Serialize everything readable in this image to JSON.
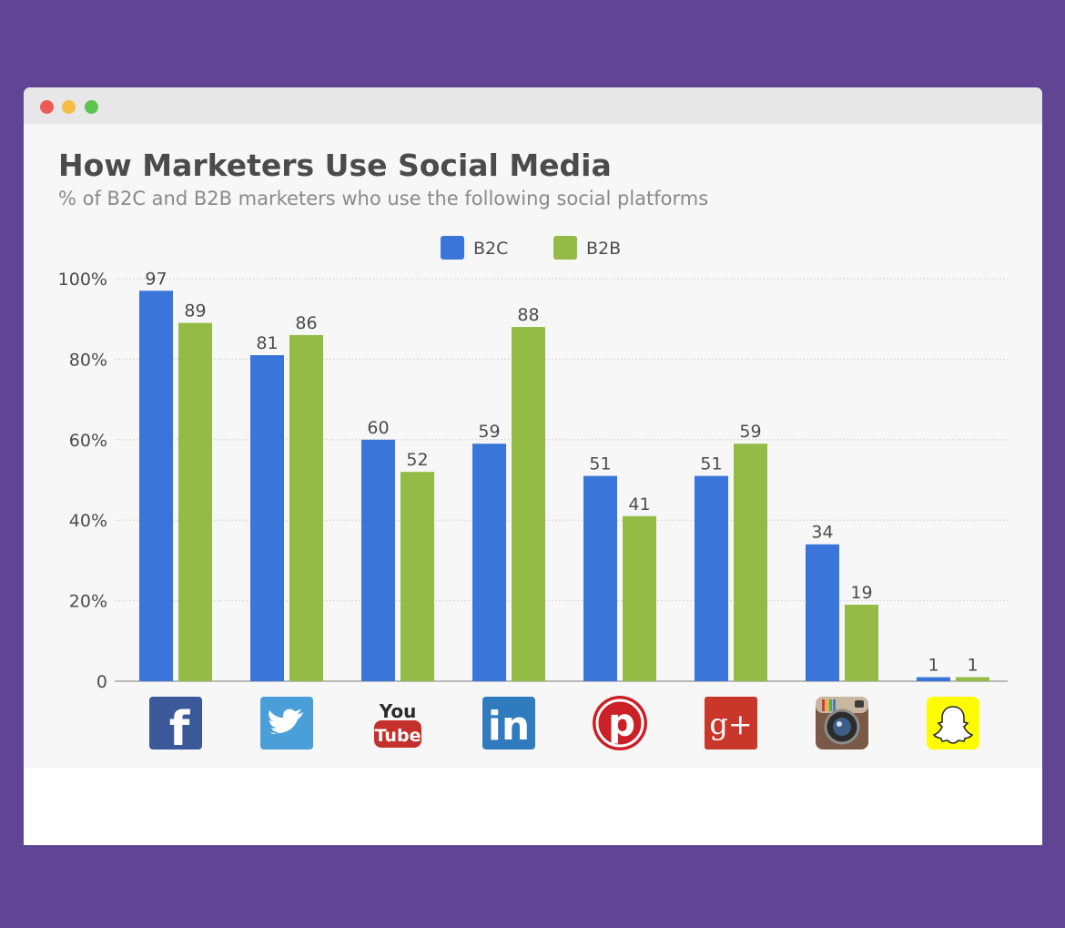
{
  "window": {
    "controls": [
      "close",
      "minimize",
      "maximize"
    ]
  },
  "chart_data": {
    "type": "bar",
    "title": "How Marketers Use Social Media",
    "subtitle": "% of B2C and B2B marketers who use the following social platforms",
    "categories": [
      "Facebook",
      "Twitter",
      "YouTube",
      "LinkedIn",
      "Pinterest",
      "Google+",
      "Instagram",
      "Snapchat"
    ],
    "category_icons": [
      "facebook-icon",
      "twitter-icon",
      "youtube-icon",
      "linkedin-icon",
      "pinterest-icon",
      "google-plus-icon",
      "instagram-icon",
      "snapchat-icon"
    ],
    "series": [
      {
        "name": "B2C",
        "color": "#3a76d9",
        "values": [
          97,
          81,
          60,
          59,
          51,
          51,
          34,
          1
        ]
      },
      {
        "name": "B2B",
        "color": "#93bb45",
        "values": [
          89,
          86,
          52,
          88,
          41,
          59,
          19,
          1
        ]
      }
    ],
    "yticks": [
      "0",
      "20%",
      "40%",
      "60%",
      "80%",
      "100%"
    ],
    "ylim": [
      0,
      100
    ],
    "grid": true,
    "legend_position": "top-center",
    "xlabel": "",
    "ylabel": ""
  }
}
